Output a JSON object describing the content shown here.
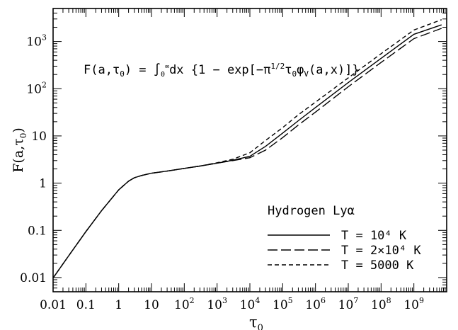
{
  "chart_data": {
    "type": "line",
    "xscale": "log",
    "yscale": "log",
    "xlim": [
      0.01,
      10000000000
    ],
    "ylim": [
      0.005,
      5000
    ],
    "xlabel": "τ",
    "xlabel_sub": "0",
    "ylabel": "F(a,τ0)",
    "x_ticks": [
      {
        "value": 0.01,
        "label": "0.01"
      },
      {
        "value": 0.1,
        "label": "0.1"
      },
      {
        "value": 1,
        "label": "1"
      },
      {
        "value": 10,
        "label": "10"
      },
      {
        "value": 100,
        "label": "10",
        "sup": "2"
      },
      {
        "value": 1000,
        "label": "10",
        "sup": "3"
      },
      {
        "value": 10000,
        "label": "10",
        "sup": "4"
      },
      {
        "value": 100000,
        "label": "10",
        "sup": "5"
      },
      {
        "value": 1000000,
        "label": "10",
        "sup": "6"
      },
      {
        "value": 10000000,
        "label": "10",
        "sup": "7"
      },
      {
        "value": 100000000,
        "label": "10",
        "sup": "8"
      },
      {
        "value": 1000000000,
        "label": "10",
        "sup": "9"
      }
    ],
    "y_ticks": [
      {
        "value": 0.01,
        "label": "0.01"
      },
      {
        "value": 0.1,
        "label": "0.1"
      },
      {
        "value": 1,
        "label": "1"
      },
      {
        "value": 10,
        "label": "10"
      },
      {
        "value": 100,
        "label": "10",
        "sup": "2"
      },
      {
        "value": 1000,
        "label": "10",
        "sup": "3"
      }
    ],
    "annotations": {
      "formula": "F(a,τ0) = ∫0∞dx {1 − exp[−π1/2τ0φV(a,x)]}",
      "legend_title": "Hydrogen Lyα"
    },
    "legend_position": "lower-right",
    "series": [
      {
        "name": "T = 10⁴ K",
        "style": "solid",
        "x": [
          0.01,
          0.03,
          0.1,
          0.3,
          1,
          2,
          3,
          5,
          10,
          30,
          100,
          300,
          1000,
          3000,
          10000,
          30000,
          100000,
          300000,
          1000000,
          10000000,
          100000000,
          1000000000,
          7000000000
        ],
        "y": [
          0.0098,
          0.029,
          0.094,
          0.26,
          0.72,
          1.1,
          1.3,
          1.45,
          1.62,
          1.8,
          2.05,
          2.3,
          2.65,
          3.05,
          3.7,
          6.0,
          11.5,
          21,
          40,
          135,
          440,
          1420,
          2250
        ]
      },
      {
        "name": "T = 2×10⁴ K",
        "style": "long-dash",
        "x": [
          0.01,
          0.03,
          0.1,
          0.3,
          1,
          2,
          3,
          5,
          10,
          30,
          100,
          300,
          1000,
          3000,
          10000,
          30000,
          100000,
          300000,
          1000000,
          10000000,
          100000000,
          1000000000,
          7000000000
        ],
        "y": [
          0.0098,
          0.029,
          0.094,
          0.26,
          0.72,
          1.1,
          1.3,
          1.45,
          1.62,
          1.8,
          2.05,
          2.3,
          2.65,
          3.0,
          3.45,
          5.0,
          9.2,
          17,
          32,
          110,
          360,
          1150,
          1900
        ]
      },
      {
        "name": "T = 5000 K",
        "style": "short-dash",
        "x": [
          0.01,
          0.03,
          0.1,
          0.3,
          1,
          2,
          3,
          5,
          10,
          30,
          100,
          300,
          1000,
          3000,
          10000,
          30000,
          100000,
          300000,
          1000000,
          10000000,
          100000000,
          1000000000,
          7000000000
        ],
        "y": [
          0.0098,
          0.029,
          0.094,
          0.26,
          0.72,
          1.1,
          1.3,
          1.45,
          1.62,
          1.8,
          2.05,
          2.3,
          2.7,
          3.2,
          4.4,
          8.0,
          15,
          28,
          52,
          170,
          550,
          1750,
          2900
        ]
      }
    ]
  }
}
